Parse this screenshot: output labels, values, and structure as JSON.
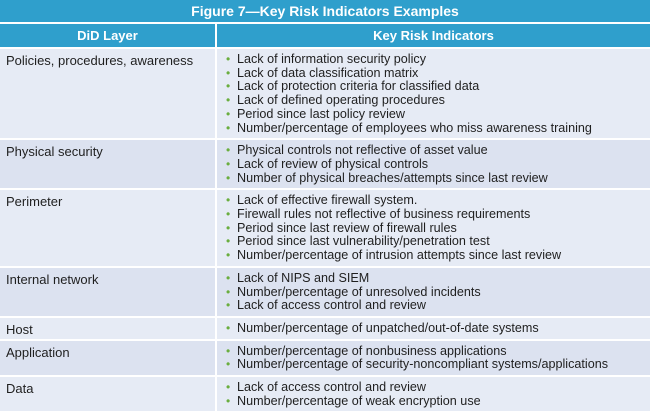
{
  "title": "Figure 7—Key Risk Indicators Examples",
  "columns": {
    "layer": "DiD Layer",
    "indicators": "Key Risk Indicators"
  },
  "rows": [
    {
      "layer": "Policies, procedures, awareness",
      "indicators": [
        "Lack of information security policy",
        "Lack of data classification matrix",
        "Lack of protection criteria for classified data",
        "Lack of defined operating procedures",
        "Period since last policy review",
        "Number/percentage of employees who miss awareness training"
      ]
    },
    {
      "layer": "Physical security",
      "indicators": [
        "Physical controls not reflective of asset value",
        "Lack of review of physical controls",
        "Number of physical breaches/attempts since last review"
      ]
    },
    {
      "layer": "Perimeter",
      "indicators": [
        "Lack of effective firewall system.",
        "Firewall rules not reflective of business requirements",
        "Period since last review of firewall rules",
        "Period since last vulnerability/penetration test",
        "Number/percentage of intrusion attempts since last review"
      ]
    },
    {
      "layer": "Internal network",
      "indicators": [
        "Lack of NIPS and SIEM",
        "Number/percentage of unresolved incidents",
        "Lack of access control and review"
      ]
    },
    {
      "layer": "Host",
      "indicators": [
        "Number/percentage of unpatched/out-of-date systems"
      ]
    },
    {
      "layer": "Application",
      "indicators": [
        "Number/percentage of nonbusiness applications",
        "Number/percentage of security-noncompliant systems/applications"
      ]
    },
    {
      "layer": "Data",
      "indicators": [
        "Lack of access control and review",
        "Number/percentage of weak encryption use"
      ]
    }
  ],
  "colors": {
    "header": "#2f9fcc",
    "row": "#dce2f0",
    "bullet": "#6aae3e"
  },
  "bullet_icon": "bullet-dot-icon"
}
